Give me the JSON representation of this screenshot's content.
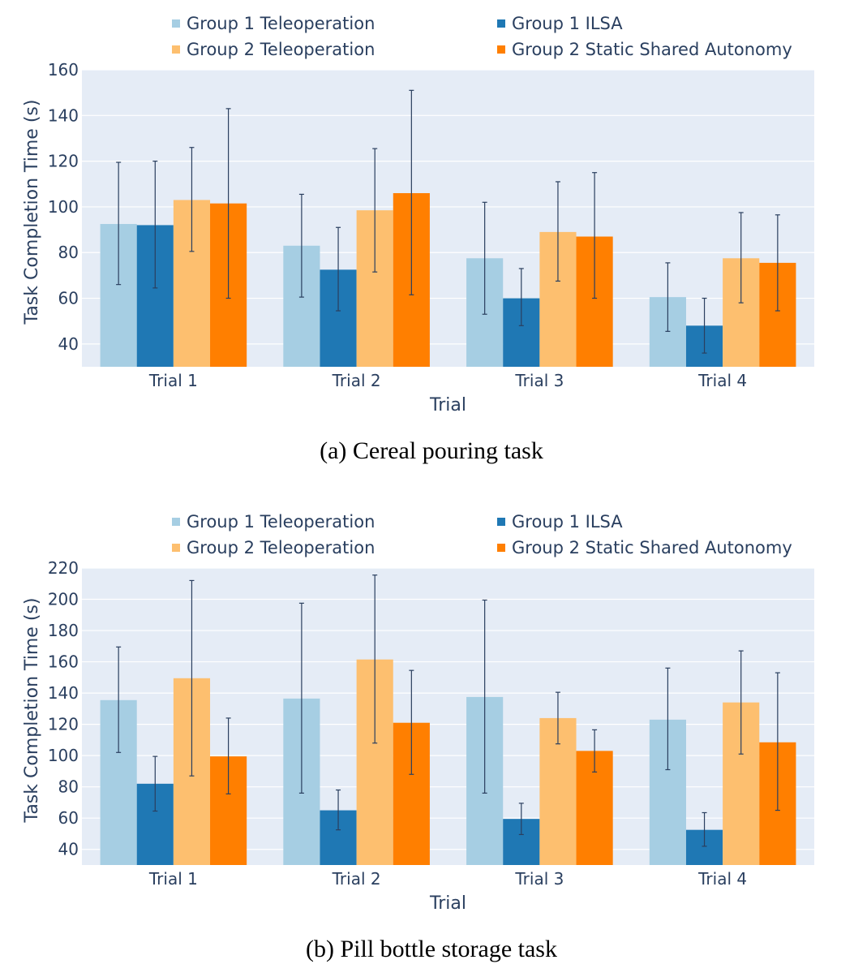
{
  "legend": [
    {
      "label": "Group 1 Teleoperation",
      "color": "#a6cee3"
    },
    {
      "label": "Group 1 ILSA",
      "color": "#1f78b4"
    },
    {
      "label": "Group 2 Teleoperation",
      "color": "#fdbf6f"
    },
    {
      "label": "Group 2 Static Shared Autonomy",
      "color": "#ff7f00"
    }
  ],
  "chart_data": [
    {
      "type": "bar",
      "caption": "(a) Cereal pouring task",
      "xlabel": "Trial",
      "ylabel": "Task Completion Time (s)",
      "categories": [
        "Trial 1",
        "Trial 2",
        "Trial 3",
        "Trial 4"
      ],
      "ylim": [
        30,
        160
      ],
      "yticks": [
        40,
        60,
        80,
        100,
        120,
        140,
        160
      ],
      "grid": true,
      "legend_position": "top",
      "series": [
        {
          "name": "Group 1 Teleoperation",
          "values": [
            92.5,
            83,
            77.5,
            60.5
          ],
          "error_low": [
            66,
            60.5,
            53,
            45.5
          ],
          "error_high": [
            119.5,
            105.5,
            102,
            75.5
          ]
        },
        {
          "name": "Group 1 ILSA",
          "values": [
            92,
            72.5,
            60,
            48
          ],
          "error_low": [
            64.5,
            54.5,
            48,
            36
          ],
          "error_high": [
            120,
            91,
            73,
            60
          ]
        },
        {
          "name": "Group 2 Teleoperation",
          "values": [
            103,
            98.5,
            89,
            77.5
          ],
          "error_low": [
            80.5,
            71.5,
            67.5,
            58
          ],
          "error_high": [
            126,
            125.5,
            111,
            97.5
          ]
        },
        {
          "name": "Group 2 Static Shared Autonomy",
          "values": [
            101.5,
            106,
            87,
            75.5
          ],
          "error_low": [
            60,
            61.5,
            60,
            54.5
          ],
          "error_high": [
            143,
            151,
            115,
            96.5
          ]
        }
      ]
    },
    {
      "type": "bar",
      "caption": "(b) Pill bottle storage task",
      "xlabel": "Trial",
      "ylabel": "Task Completion Time (s)",
      "categories": [
        "Trial 1",
        "Trial 2",
        "Trial 3",
        "Trial 4"
      ],
      "ylim": [
        30,
        220
      ],
      "yticks": [
        40,
        60,
        80,
        100,
        120,
        140,
        160,
        180,
        200,
        220
      ],
      "grid": true,
      "legend_position": "top",
      "series": [
        {
          "name": "Group 1 Teleoperation",
          "values": [
            135.5,
            136.5,
            137.5,
            123
          ],
          "error_low": [
            102,
            76,
            76,
            91
          ],
          "error_high": [
            169.5,
            197.5,
            199.5,
            156
          ]
        },
        {
          "name": "Group 1 ILSA",
          "values": [
            82,
            65,
            59.5,
            52.5
          ],
          "error_low": [
            64.5,
            52.5,
            49.5,
            42
          ],
          "error_high": [
            99.5,
            78,
            69.5,
            63.5
          ]
        },
        {
          "name": "Group 2 Teleoperation",
          "values": [
            149.5,
            161.5,
            124,
            134
          ],
          "error_low": [
            87,
            108,
            107.5,
            101
          ],
          "error_high": [
            212,
            215.5,
            140.5,
            167
          ]
        },
        {
          "name": "Group 2 Static Shared Autonomy",
          "values": [
            99.5,
            121,
            103,
            108.5
          ],
          "error_low": [
            75.5,
            88,
            89.5,
            65
          ],
          "error_high": [
            124,
            154.5,
            116.5,
            153
          ]
        }
      ]
    }
  ]
}
